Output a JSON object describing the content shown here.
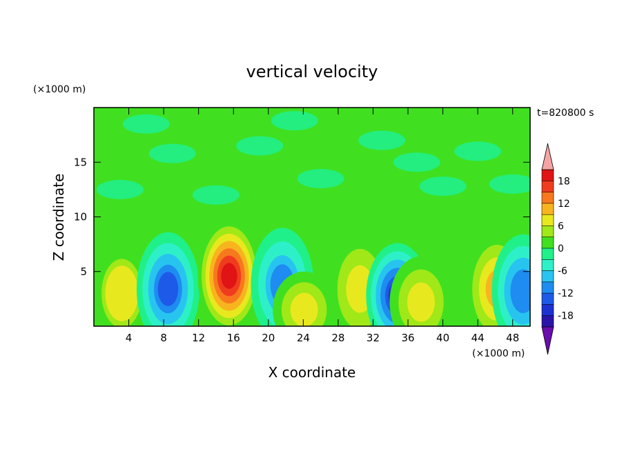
{
  "chart_data": {
    "type": "heatmap",
    "title": "vertical velocity",
    "xlabel": "X coordinate",
    "ylabel": "Z coordinate",
    "x_unit": "(×1000 m)",
    "y_unit": "(×1000 m)",
    "time_label": "t=820800 s",
    "xlim": [
      0,
      50
    ],
    "ylim": [
      0,
      20
    ],
    "x_ticks": [
      4,
      8,
      12,
      16,
      20,
      24,
      28,
      32,
      36,
      40,
      44,
      48
    ],
    "y_ticks": [
      5,
      10,
      15
    ],
    "colorbar": {
      "levels": [
        -21,
        -18,
        -15,
        -12,
        -9,
        -6,
        -3,
        0,
        3,
        6,
        9,
        12,
        15,
        18,
        21
      ],
      "tick_labels": [
        18,
        12,
        6,
        0,
        -6,
        -12,
        -18
      ],
      "colors": [
        "#6a0dad",
        "#2a14a8",
        "#1e32d2",
        "#1e5ae8",
        "#1e8cf0",
        "#28c4f0",
        "#2ef0c8",
        "#20f08a",
        "#40e020",
        "#a0e818",
        "#e8e81e",
        "#f8b41e",
        "#f8781e",
        "#f03c1e",
        "#e01414",
        "#f4a4a4"
      ]
    },
    "features": [
      {
        "x": 3.2,
        "z": 3.0,
        "value": 6
      },
      {
        "x": 8.5,
        "z": 3.4,
        "value": -13
      },
      {
        "x": 15.5,
        "z": 4.6,
        "value": 20
      },
      {
        "x": 21.6,
        "z": 3.8,
        "value": -10
      },
      {
        "x": 24.1,
        "z": 1.5,
        "value": 8
      },
      {
        "x": 30.5,
        "z": 3.4,
        "value": 8
      },
      {
        "x": 34.8,
        "z": 2.8,
        "value": -16
      },
      {
        "x": 37.5,
        "z": 2.2,
        "value": 8
      },
      {
        "x": 46.2,
        "z": 3.4,
        "value": 11
      },
      {
        "x": 49.2,
        "z": 3.2,
        "value": -12
      }
    ]
  }
}
